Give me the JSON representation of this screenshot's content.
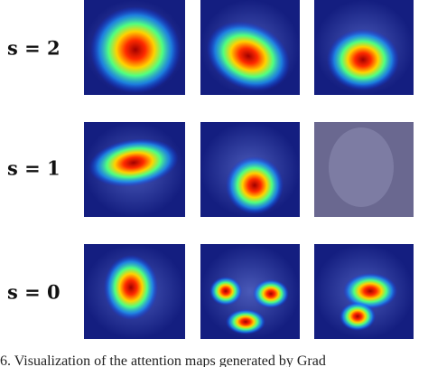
{
  "rows": [
    {
      "label": "s = 2"
    },
    {
      "label": "s = 1"
    },
    {
      "label": "s = 0"
    }
  ],
  "caption": "6. Visualization of the attention maps generated by Grad"
}
